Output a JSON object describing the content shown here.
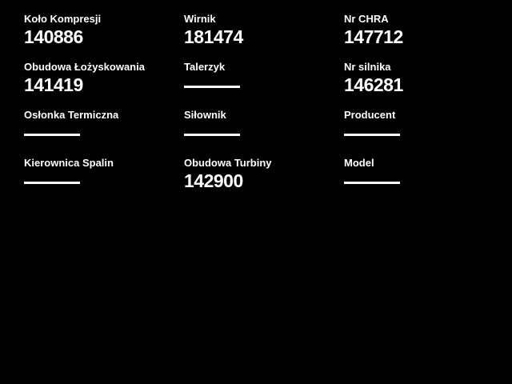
{
  "page": {
    "background_color": "#000000",
    "text_color": "#ffffff"
  },
  "fields": [
    {
      "key": "kolo-kompresji",
      "label": "Koło Kompresji",
      "value": "140886"
    },
    {
      "key": "wirnik",
      "label": "Wirnik",
      "value": "181474"
    },
    {
      "key": "nr-chra",
      "label": "Nr CHRA",
      "value": "147712"
    },
    {
      "key": "obudowa-lozyskowania",
      "label": "Obudowa Łożyskowania",
      "value": "141419"
    },
    {
      "key": "talerzyk",
      "label": "Talerzyk",
      "value": ""
    },
    {
      "key": "nr-silnika",
      "label": "Nr silnika",
      "value": "146281"
    },
    {
      "key": "oslonka-termiczna",
      "label": "Osłonka Termiczna",
      "value": ""
    },
    {
      "key": "silownik",
      "label": "Siłownik",
      "value": ""
    },
    {
      "key": "producent",
      "label": "Producent",
      "value": ""
    },
    {
      "key": "kierownica-spalin",
      "label": "Kierownica Spalin",
      "value": ""
    },
    {
      "key": "obudowa-turbiny",
      "label": "Obudowa Turbiny",
      "value": "142900"
    },
    {
      "key": "model",
      "label": "Model",
      "value": ""
    }
  ]
}
